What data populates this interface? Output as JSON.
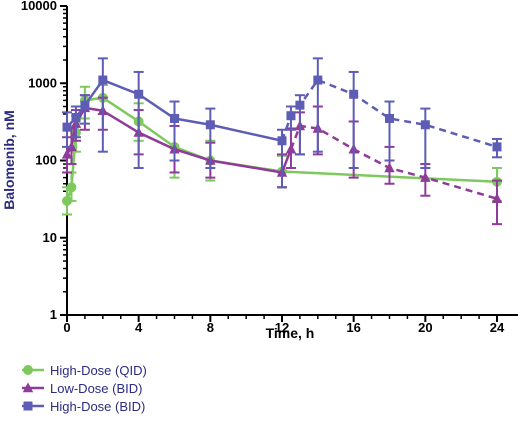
{
  "chart_data": {
    "type": "line",
    "title": "",
    "xlabel": "Time, h",
    "ylabel": "Balomenib, nM",
    "y_scale": "log",
    "xlim": [
      0,
      24
    ],
    "ylim": [
      1,
      10000
    ],
    "x_ticks": [
      0,
      4,
      8,
      12,
      16,
      20,
      24
    ],
    "x_tick_labels": [
      "0",
      "4",
      "8",
      "12",
      "16",
      "20",
      "24"
    ],
    "y_ticks": [
      1,
      10,
      100,
      1000,
      10000
    ],
    "y_tick_labels": [
      "1",
      "10",
      "100",
      "1000",
      "10000"
    ],
    "grid": false,
    "legend_position": "bottom-left",
    "series": [
      {
        "name": "High-Dose (QID)",
        "color": "#7dc95e",
        "marker": "circle",
        "points": [
          {
            "x": 0,
            "y": 30,
            "lo": 20,
            "hi": 45
          },
          {
            "x": 0.25,
            "y": 45,
            "lo": 30,
            "hi": 70
          },
          {
            "x": 0.5,
            "y": 230,
            "lo": 130,
            "hi": 380
          },
          {
            "x": 1,
            "y": 600,
            "lo": 350,
            "hi": 900
          },
          {
            "x": 2,
            "y": 650,
            "lo": 400,
            "hi": 950
          },
          {
            "x": 4,
            "y": 320,
            "lo": 180,
            "hi": 550
          },
          {
            "x": 6,
            "y": 150,
            "lo": 60,
            "hi": 380
          },
          {
            "x": 8,
            "y": 100,
            "lo": 55,
            "hi": 180
          },
          {
            "x": 12,
            "y": 72,
            "lo": 45,
            "hi": 115
          },
          {
            "x": 24,
            "y": 53,
            "lo": 30,
            "hi": 80
          }
        ],
        "segments": [
          {
            "style": "solid",
            "points": [
              0,
              1,
              2,
              3,
              4,
              5,
              6,
              7,
              8,
              9
            ]
          }
        ]
      },
      {
        "name": "Low-Dose (BID)",
        "color": "#8e3b9a",
        "marker": "triangle",
        "points": [
          {
            "x": 0,
            "y": 120,
            "lo": 70,
            "hi": 200
          },
          {
            "x": 0.25,
            "y": 150,
            "lo": 90,
            "hi": 260
          },
          {
            "x": 0.5,
            "y": 300,
            "lo": 180,
            "hi": 450
          },
          {
            "x": 1,
            "y": 480,
            "lo": 250,
            "hi": 700
          },
          {
            "x": 2,
            "y": 440,
            "lo": 250,
            "hi": 650
          },
          {
            "x": 4,
            "y": 230,
            "lo": 120,
            "hi": 450
          },
          {
            "x": 6,
            "y": 140,
            "lo": 70,
            "hi": 280
          },
          {
            "x": 8,
            "y": 100,
            "lo": 60,
            "hi": 170
          },
          {
            "x": 12,
            "y": 70,
            "lo": 45,
            "hi": 120
          },
          {
            "x": 12.5,
            "y": 140,
            "lo": 80,
            "hi": 260
          },
          {
            "x": 13,
            "y": 280,
            "lo": 120,
            "hi": 420
          },
          {
            "x": 14,
            "y": 260,
            "lo": 120,
            "hi": 500
          },
          {
            "x": 16,
            "y": 140,
            "lo": 60,
            "hi": 320
          },
          {
            "x": 18,
            "y": 80,
            "lo": 50,
            "hi": 150
          },
          {
            "x": 20,
            "y": 60,
            "lo": 35,
            "hi": 90
          },
          {
            "x": 24,
            "y": 32,
            "lo": 15,
            "hi": 55
          }
        ],
        "segments": [
          {
            "style": "solid",
            "points": [
              0,
              1,
              2,
              3,
              4,
              5,
              6,
              7,
              8,
              9
            ]
          },
          {
            "style": "dashed",
            "points": [
              9,
              10,
              11,
              12,
              13,
              14,
              15
            ]
          }
        ]
      },
      {
        "name": "High-Dose (BID)",
        "color": "#5d5db5",
        "marker": "square",
        "points": [
          {
            "x": 0,
            "y": 270,
            "lo": 150,
            "hi": 420
          },
          {
            "x": 0.5,
            "y": 360,
            "lo": 200,
            "hi": 500
          },
          {
            "x": 1,
            "y": 520,
            "lo": 300,
            "hi": 700
          },
          {
            "x": 2,
            "y": 1100,
            "lo": 130,
            "hi": 2100
          },
          {
            "x": 4,
            "y": 720,
            "lo": 80,
            "hi": 1400
          },
          {
            "x": 6,
            "y": 350,
            "lo": 100,
            "hi": 580
          },
          {
            "x": 8,
            "y": 290,
            "lo": 80,
            "hi": 470
          },
          {
            "x": 12,
            "y": 180,
            "lo": 45,
            "hi": 250
          },
          {
            "x": 12.5,
            "y": 380,
            "lo": 250,
            "hi": 500
          },
          {
            "x": 13,
            "y": 520,
            "lo": 120,
            "hi": 700
          },
          {
            "x": 14,
            "y": 1100,
            "lo": 130,
            "hi": 2100
          },
          {
            "x": 16,
            "y": 720,
            "lo": 80,
            "hi": 1400
          },
          {
            "x": 18,
            "y": 350,
            "lo": 100,
            "hi": 580
          },
          {
            "x": 20,
            "y": 290,
            "lo": 80,
            "hi": 470
          },
          {
            "x": 24,
            "y": 150,
            "lo": 110,
            "hi": 190
          }
        ],
        "segments": [
          {
            "style": "solid",
            "points": [
              0,
              1,
              2,
              3,
              4,
              5,
              6,
              7
            ]
          },
          {
            "style": "dashed",
            "points": [
              7,
              8,
              9,
              10,
              11,
              12,
              13,
              14
            ]
          }
        ]
      }
    ]
  }
}
